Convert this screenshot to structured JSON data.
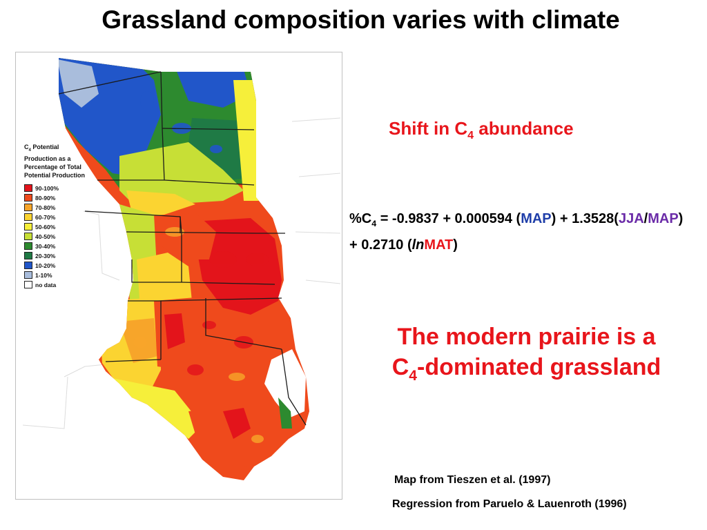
{
  "title": "Grassland composition varies with climate",
  "legend": {
    "title_pre": "C",
    "title_sub": "4",
    "title_post": " Potential Production as a Percentage of Total Potential Production",
    "items": [
      {
        "label": "90-100%",
        "color": "#e3141b"
      },
      {
        "label": "80-90%",
        "color": "#ef4a1c"
      },
      {
        "label": "70-80%",
        "color": "#f7a52a"
      },
      {
        "label": "60-70%",
        "color": "#fbd431"
      },
      {
        "label": "50-60%",
        "color": "#f6ef3a"
      },
      {
        "label": "40-50%",
        "color": "#c7df36"
      },
      {
        "label": "30-40%",
        "color": "#2d8a2f"
      },
      {
        "label": "20-30%",
        "color": "#1f7a45"
      },
      {
        "label": "10-20%",
        "color": "#2156c9"
      },
      {
        "label": "1-10%",
        "color": "#a9bddc"
      },
      {
        "label": "no data",
        "color": "#ffffff"
      }
    ]
  },
  "shift": {
    "pre": "Shift in C",
    "sub": "4",
    "post": " abundance"
  },
  "equation": {
    "p1": "%C",
    "p1_sub": "4",
    "p2": " = -0.9837 + 0.000594 (",
    "map": "MAP",
    "p3": ") + 1.3528(",
    "jja": "JJA",
    "slash": "/",
    "map2": "MAP",
    "p4": ") + 0.2710 (",
    "ln": "ln",
    "mat": "MAT",
    "p5": ")"
  },
  "conclusion": {
    "line1": "The modern prairie is a",
    "line2_pre": "C",
    "line2_sub": "4",
    "line2_post": "-dominated grassland"
  },
  "citations": {
    "map": "Map from Tieszen et al. (1997)",
    "regression": "Regression from Paruelo & Lauenroth (1996)"
  }
}
